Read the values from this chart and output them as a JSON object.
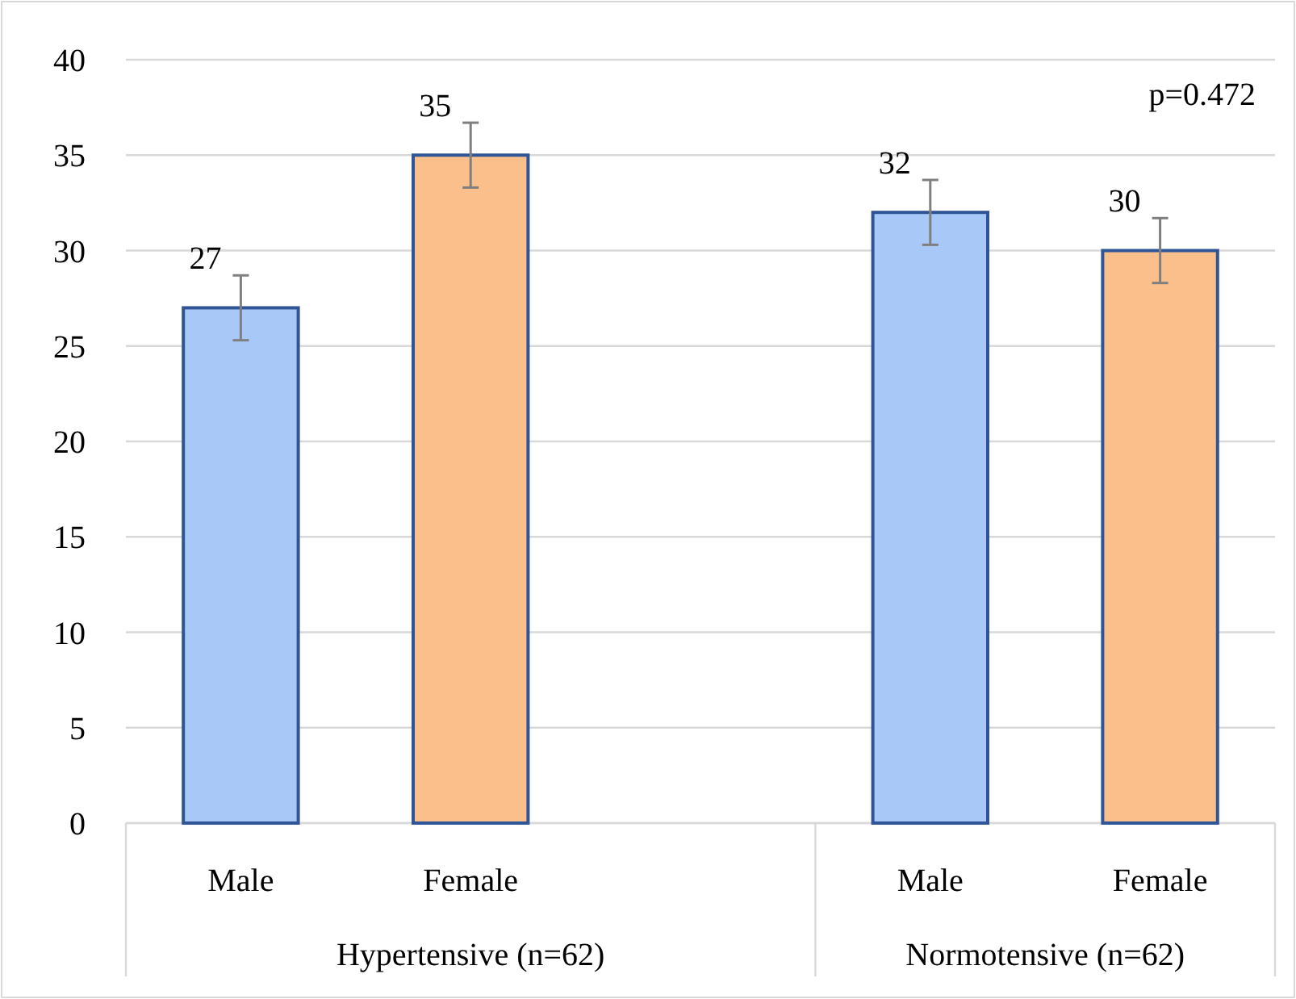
{
  "chart_data": {
    "type": "bar",
    "categories": [
      "Male",
      "Female",
      null,
      "Male",
      "Female"
    ],
    "values": [
      27,
      35,
      null,
      32,
      30
    ],
    "colors": [
      "#a8c8f8",
      "#fbbf8b",
      null,
      "#a8c8f8",
      "#fbbf8b"
    ],
    "errors": [
      1.7,
      1.7,
      null,
      1.7,
      1.7
    ],
    "data_labels": true,
    "ylim": [
      0,
      40
    ],
    "yticks": [
      0,
      5,
      10,
      15,
      20,
      25,
      30,
      35,
      40
    ],
    "grid": "y",
    "annotations": [
      "p=0.472",
      "Hypertensive (n=62)",
      "Normotensive (n=62)"
    ]
  }
}
